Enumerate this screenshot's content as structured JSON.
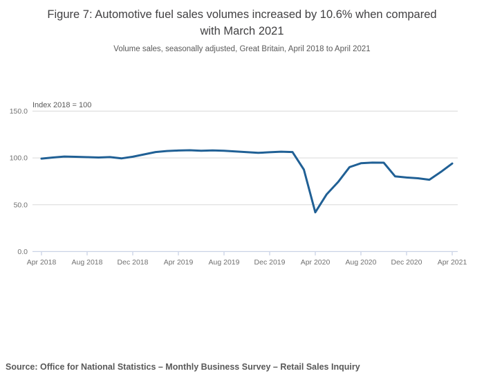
{
  "header": {
    "title": "Figure 7: Automotive fuel sales volumes increased by 10.6% when compared with March 2021",
    "subtitle": "Volume sales, seasonally adjusted, Great Britain, April 2018 to April 2021"
  },
  "footer": {
    "source": "Source: Office for National Statistics – Monthly Business Survey – Retail Sales Inquiry"
  },
  "chart_data": {
    "type": "line",
    "title": "Figure 7: Automotive fuel sales volumes increased by 10.6% when compared with March 2021",
    "unit_label": "Index 2018 = 100",
    "xlabel": "",
    "ylabel": "Index 2018 = 100",
    "x": [
      "Apr 2018",
      "May 2018",
      "Jun 2018",
      "Jul 2018",
      "Aug 2018",
      "Sep 2018",
      "Oct 2018",
      "Nov 2018",
      "Dec 2018",
      "Jan 2019",
      "Feb 2019",
      "Mar 2019",
      "Apr 2019",
      "May 2019",
      "Jun 2019",
      "Jul 2019",
      "Aug 2019",
      "Sep 2019",
      "Oct 2019",
      "Nov 2019",
      "Dec 2019",
      "Jan 2020",
      "Feb 2020",
      "Mar 2020",
      "Apr 2020",
      "May 2020",
      "Jun 2020",
      "Jul 2020",
      "Aug 2020",
      "Sep 2020",
      "Oct 2020",
      "Nov 2020",
      "Dec 2020",
      "Jan 2021",
      "Feb 2021",
      "Mar 2021",
      "Apr 2021"
    ],
    "values": [
      99.3,
      100.5,
      101.5,
      101.2,
      100.8,
      100.5,
      100.9,
      99.5,
      101.3,
      103.8,
      106.3,
      107.4,
      107.9,
      108.2,
      107.6,
      108.1,
      107.6,
      106.9,
      106.2,
      105.4,
      106.1,
      106.7,
      106.3,
      87.5,
      41.9,
      61.2,
      74.3,
      90.2,
      94.3,
      95.0,
      94.9,
      80.3,
      79.1,
      78.3,
      76.7,
      85.0,
      94.0
    ],
    "x_tick_labels": [
      "Apr 2018",
      "Aug 2018",
      "Dec 2018",
      "Apr 2019",
      "Aug 2019",
      "Dec 2019",
      "Apr 2020",
      "Aug 2020",
      "Dec 2020",
      "Apr 2021"
    ],
    "x_tick_every": 4,
    "y_ticks": [
      0.0,
      50.0,
      100.0,
      150.0
    ],
    "y_tick_labels": [
      "0.0",
      "50.0",
      "100.0",
      "150.0"
    ],
    "ylim": [
      0,
      160
    ],
    "grid": "horizontal",
    "legend": "none"
  },
  "colors": {
    "line": "#206095",
    "gridline": "#d9d9d9",
    "axis": "#c9d2e6",
    "tick_label": "#707070",
    "unit_label": "#595959",
    "title_text": "#414042",
    "subtitle_text": "#595959",
    "source_text": "#595959"
  }
}
